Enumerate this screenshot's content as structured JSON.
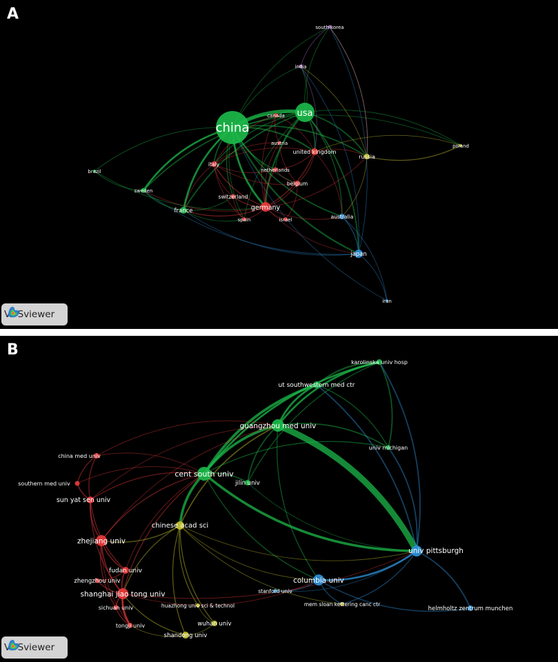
{
  "panels": [
    {
      "letter": "A",
      "brand": "VOSviewer",
      "clusters": {
        "red": "#e8393b",
        "green": "#1cb84a",
        "blue": "#2e8fd6",
        "yellow": "#c6c12d",
        "purple": "#b06ad0"
      },
      "nodes": [
        {
          "id": "china",
          "label": "china",
          "cluster": "green"
        },
        {
          "id": "usa",
          "label": "usa",
          "cluster": "green"
        },
        {
          "id": "south korea",
          "label": "south korea",
          "cluster": "purple"
        },
        {
          "id": "india",
          "label": "india",
          "cluster": "purple"
        },
        {
          "id": "canada",
          "label": "canada",
          "cluster": "red"
        },
        {
          "id": "austria",
          "label": "austria",
          "cluster": "red"
        },
        {
          "id": "united kingdom",
          "label": "united kingdom",
          "cluster": "red"
        },
        {
          "id": "russia",
          "label": "russia",
          "cluster": "yellow"
        },
        {
          "id": "poland",
          "label": "poland",
          "cluster": "yellow"
        },
        {
          "id": "italy",
          "label": "italy",
          "cluster": "red"
        },
        {
          "id": "netherlands",
          "label": "netherlands",
          "cluster": "red"
        },
        {
          "id": "belgium",
          "label": "belgium",
          "cluster": "red"
        },
        {
          "id": "brazil",
          "label": "brazil",
          "cluster": "green"
        },
        {
          "id": "sweden",
          "label": "sweden",
          "cluster": "green"
        },
        {
          "id": "switzerland",
          "label": "switzerland",
          "cluster": "red"
        },
        {
          "id": "germany",
          "label": "germany",
          "cluster": "red"
        },
        {
          "id": "france",
          "label": "france",
          "cluster": "green"
        },
        {
          "id": "spain",
          "label": "spain",
          "cluster": "red"
        },
        {
          "id": "israel",
          "label": "israel",
          "cluster": "red"
        },
        {
          "id": "australia",
          "label": "australia",
          "cluster": "blue"
        },
        {
          "id": "japan",
          "label": "japan",
          "cluster": "blue"
        },
        {
          "id": "iran",
          "label": "iran",
          "cluster": "blue"
        }
      ],
      "links": [
        [
          "china",
          "usa",
          6
        ],
        [
          "china",
          "germany",
          3
        ],
        [
          "china",
          "united kingdom",
          2.5
        ],
        [
          "china",
          "france",
          3
        ],
        [
          "china",
          "sweden",
          3
        ],
        [
          "china",
          "russia",
          2
        ],
        [
          "china",
          "japan",
          2.5
        ],
        [
          "china",
          "australia",
          2
        ],
        [
          "china",
          "italy",
          2
        ],
        [
          "china",
          "canada",
          1.5
        ],
        [
          "china",
          "brazil",
          1
        ],
        [
          "china",
          "switzerland",
          1.5
        ],
        [
          "china",
          "netherlands",
          1.5
        ],
        [
          "china",
          "south korea",
          1
        ],
        [
          "china",
          "india",
          1
        ],
        [
          "china",
          "spain",
          1
        ],
        [
          "china",
          "belgium",
          1
        ],
        [
          "china",
          "poland",
          1
        ],
        [
          "usa",
          "germany",
          2.5
        ],
        [
          "usa",
          "united kingdom",
          2
        ],
        [
          "usa",
          "france",
          2
        ],
        [
          "usa",
          "japan",
          2
        ],
        [
          "usa",
          "russia",
          2
        ],
        [
          "usa",
          "australia",
          1.5
        ],
        [
          "usa",
          "italy",
          1.5
        ],
        [
          "usa",
          "canada",
          1.5
        ],
        [
          "usa",
          "south korea",
          1
        ],
        [
          "usa",
          "india",
          1
        ],
        [
          "usa",
          "sweden",
          2
        ],
        [
          "usa",
          "poland",
          1
        ],
        [
          "usa",
          "netherlands",
          1
        ],
        [
          "usa",
          "spain",
          1
        ],
        [
          "germany",
          "united kingdom",
          1.5
        ],
        [
          "germany",
          "italy",
          1.5
        ],
        [
          "germany",
          "france",
          1.5
        ],
        [
          "germany",
          "switzerland",
          1.5
        ],
        [
          "germany",
          "netherlands",
          1.5
        ],
        [
          "germany",
          "belgium",
          1
        ],
        [
          "germany",
          "spain",
          1
        ],
        [
          "germany",
          "israel",
          1
        ],
        [
          "germany",
          "austria",
          1
        ],
        [
          "germany",
          "canada",
          1
        ],
        [
          "germany",
          "sweden",
          1
        ],
        [
          "germany",
          "russia",
          1
        ],
        [
          "germany",
          "japan",
          1
        ],
        [
          "germany",
          "australia",
          1
        ],
        [
          "italy",
          "france",
          1
        ],
        [
          "italy",
          "switzerland",
          1
        ],
        [
          "italy",
          "united kingdom",
          1
        ],
        [
          "italy",
          "netherlands",
          1
        ],
        [
          "italy",
          "spain",
          1
        ],
        [
          "italy",
          "belgium",
          1
        ],
        [
          "united kingdom",
          "netherlands",
          1
        ],
        [
          "united kingdom",
          "belgium",
          1
        ],
        [
          "united kingdom",
          "australia",
          1
        ],
        [
          "united kingdom",
          "russia",
          1
        ],
        [
          "canada",
          "austria",
          1
        ],
        [
          "canada",
          "italy",
          1
        ],
        [
          "canada",
          "united kingdom",
          1
        ],
        [
          "austria",
          "italy",
          1
        ],
        [
          "austria",
          "belgium",
          1
        ],
        [
          "russia",
          "poland",
          1.5
        ],
        [
          "russia",
          "australia",
          1
        ],
        [
          "russia",
          "india",
          1
        ],
        [
          "russia",
          "south korea",
          1
        ],
        [
          "japan",
          "australia",
          1.5
        ],
        [
          "japan",
          "iran",
          1
        ],
        [
          "japan",
          "south korea",
          1
        ],
        [
          "japan",
          "india",
          1
        ],
        [
          "japan",
          "france",
          1
        ],
        [
          "japan",
          "sweden",
          1
        ],
        [
          "australia",
          "iran",
          1
        ],
        [
          "sweden",
          "france",
          1.5
        ],
        [
          "sweden",
          "brazil",
          1
        ],
        [
          "france",
          "spain",
          1
        ],
        [
          "france",
          "switzerland",
          1
        ],
        [
          "south korea",
          "india",
          1
        ],
        [
          "south korea",
          "russia",
          1
        ],
        [
          "india",
          "united kingdom",
          1
        ],
        [
          "poland",
          "united kingdom",
          1
        ],
        [
          "brazil",
          "germany",
          1
        ],
        [
          "israel",
          "belgium",
          1
        ],
        [
          "switzerland",
          "spain",
          1
        ],
        [
          "netherlands",
          "belgium",
          1
        ],
        [
          "iran",
          "china",
          1
        ]
      ]
    },
    {
      "letter": "B",
      "brand": "VOSviewer",
      "clusters": {
        "red": "#e8393b",
        "green": "#1cb84a",
        "blue": "#2e8fd6",
        "yellow": "#c6c12d"
      },
      "nodes": [
        {
          "id": "karolinska univ hosp",
          "label": "karolinska univ hosp",
          "cluster": "green"
        },
        {
          "id": "ut southwestern med ctr",
          "label": "ut southwestern med ctr",
          "cluster": "green"
        },
        {
          "id": "guangzhou med univ",
          "label": "guangzhou med univ",
          "cluster": "green"
        },
        {
          "id": "univ michigan",
          "label": "univ michigan",
          "cluster": "green"
        },
        {
          "id": "cent south univ",
          "label": "cent south univ",
          "cluster": "green"
        },
        {
          "id": "jilin univ",
          "label": "jilin univ",
          "cluster": "green"
        },
        {
          "id": "china med univ",
          "label": "china med univ",
          "cluster": "red"
        },
        {
          "id": "southern med univ",
          "label": "southern med univ",
          "cluster": "red"
        },
        {
          "id": "sun yat sen univ",
          "label": "sun yat sen univ",
          "cluster": "red"
        },
        {
          "id": "chinese acad sci",
          "label": "chinese acad sci",
          "cluster": "yellow"
        },
        {
          "id": "zhejiang univ",
          "label": "zhejiang univ",
          "cluster": "red"
        },
        {
          "id": "univ pittsburgh",
          "label": "univ pittsburgh",
          "cluster": "blue"
        },
        {
          "id": "fudan univ",
          "label": "fudan univ",
          "cluster": "red"
        },
        {
          "id": "columbia univ",
          "label": "columbia univ",
          "cluster": "blue"
        },
        {
          "id": "zhengzhou univ",
          "label": "zhengzhou univ",
          "cluster": "red"
        },
        {
          "id": "stanford univ",
          "label": "stanford univ",
          "cluster": "blue"
        },
        {
          "id": "shanghai jiao tong univ",
          "label": "shanghai jiao tong univ",
          "cluster": "red"
        },
        {
          "id": "huazhong univ sci & technol",
          "label": "huazhong univ sci & technol",
          "cluster": "yellow"
        },
        {
          "id": "mem sloan kettering canc ctr",
          "label": "mem sloan kettering canc ctr",
          "cluster": "yellow"
        },
        {
          "id": "helmholtz zentrum munchen",
          "label": "helmholtz zentrum munchen",
          "cluster": "blue"
        },
        {
          "id": "sichuan univ",
          "label": "sichuan univ",
          "cluster": "red"
        },
        {
          "id": "wuhan univ",
          "label": "wuhan univ",
          "cluster": "yellow"
        },
        {
          "id": "tongji univ",
          "label": "tongji univ",
          "cluster": "red"
        },
        {
          "id": "shandong univ",
          "label": "shandong univ",
          "cluster": "yellow"
        }
      ],
      "links": [
        [
          "guangzhou med univ",
          "univ pittsburgh",
          10
        ],
        [
          "cent south univ",
          "univ pittsburgh",
          4
        ],
        [
          "cent south univ",
          "guangzhou med univ",
          4
        ],
        [
          "cent south univ",
          "ut southwestern med ctr",
          4
        ],
        [
          "cent south univ",
          "karolinska univ hosp",
          3
        ],
        [
          "guangzhou med univ",
          "ut southwestern med ctr",
          3
        ],
        [
          "guangzhou med univ",
          "karolinska univ hosp",
          3
        ],
        [
          "ut southwestern med ctr",
          "karolinska univ hosp",
          2.5
        ],
        [
          "univ michigan",
          "karolinska univ hosp",
          2
        ],
        [
          "univ pittsburgh",
          "karolinska univ hosp",
          2
        ],
        [
          "univ pittsburgh",
          "ut southwestern med ctr",
          2
        ],
        [
          "univ pittsburgh",
          "univ michigan",
          2
        ],
        [
          "cent south univ",
          "chinese acad sci",
          4
        ],
        [
          "chinese acad sci",
          "guangzhou med univ",
          2
        ],
        [
          "cent south univ",
          "jilin univ",
          2
        ],
        [
          "jilin univ",
          "guangzhou med univ",
          2
        ],
        [
          "jilin univ",
          "karolinska univ hosp",
          1.5
        ],
        [
          "univ pittsburgh",
          "columbia univ",
          3
        ],
        [
          "univ pittsburgh",
          "helmholtz zentrum munchen",
          2
        ],
        [
          "columbia univ",
          "helmholtz zentrum munchen",
          1.5
        ],
        [
          "columbia univ",
          "stanford univ",
          1.5
        ],
        [
          "columbia univ",
          "mem sloan kettering canc ctr",
          1.5
        ],
        [
          "univ pittsburgh",
          "mem sloan kettering canc ctr",
          1.5
        ],
        [
          "cent south univ",
          "columbia univ",
          1.5
        ],
        [
          "guangzhou med univ",
          "columbia univ",
          1.5
        ],
        [
          "guangzhou med univ",
          "univ michigan",
          2
        ],
        [
          "cent south univ",
          "univ michigan",
          1.5
        ],
        [
          "ut southwestern med ctr",
          "univ michigan",
          1.5
        ],
        [
          "zhejiang univ",
          "sun yat sen univ",
          2
        ],
        [
          "zhejiang univ",
          "fudan univ",
          2
        ],
        [
          "fudan univ",
          "shanghai jiao tong univ",
          2.5
        ],
        [
          "shanghai jiao tong univ",
          "tongji univ",
          3
        ],
        [
          "shanghai jiao tong univ",
          "sichuan univ",
          2
        ],
        [
          "zhejiang univ",
          "shanghai jiao tong univ",
          2
        ],
        [
          "sun yat sen univ",
          "southern med univ",
          2
        ],
        [
          "sun yat sen univ",
          "china med univ",
          1.5
        ],
        [
          "china med univ",
          "southern med univ",
          1.5
        ],
        [
          "zhengzhou univ",
          "fudan univ",
          1.5
        ],
        [
          "zhengzhou univ",
          "shanghai jiao tong univ",
          1.5
        ],
        [
          "sun yat sen univ",
          "cent south univ",
          1.5
        ],
        [
          "zhejiang univ",
          "cent south univ",
          1.5
        ],
        [
          "shanghai jiao tong univ",
          "cent south univ",
          1.5
        ],
        [
          "chinese acad sci",
          "zhejiang univ",
          1.5
        ],
        [
          "chinese acad sci",
          "shanghai jiao tong univ",
          1.5
        ],
        [
          "chinese acad sci",
          "huazhong univ sci & technol",
          1.5
        ],
        [
          "chinese acad sci",
          "wuhan univ",
          1.5
        ],
        [
          "chinese acad sci",
          "shandong univ",
          1.5
        ],
        [
          "shandong univ",
          "wuhan univ",
          1
        ],
        [
          "shandong univ",
          "tongji univ",
          1
        ],
        [
          "shandong univ",
          "shanghai jiao tong univ",
          1.5
        ],
        [
          "huazhong univ sci & technol",
          "wuhan univ",
          1
        ],
        [
          "sichuan univ",
          "tongji univ",
          1.5
        ],
        [
          "china med univ",
          "cent south univ",
          1
        ],
        [
          "southern med univ",
          "cent south univ",
          1
        ],
        [
          "zhejiang univ",
          "guangzhou med univ",
          1
        ],
        [
          "fudan univ",
          "cent south univ",
          1
        ],
        [
          "shanghai jiao tong univ",
          "columbia univ",
          1
        ],
        [
          "shanghai jiao tong univ",
          "univ pittsburgh",
          1
        ],
        [
          "mem sloan kettering canc ctr",
          "chinese acad sci",
          1
        ],
        [
          "stanford univ",
          "univ pittsburgh",
          1
        ],
        [
          "zhejiang univ",
          "sichuan univ",
          1.5
        ],
        [
          "sun yat sen univ",
          "fudan univ",
          1.5
        ],
        [
          "sun yat sen univ",
          "shanghai jiao tong univ",
          1.5
        ],
        [
          "tongji univ",
          "zhejiang univ",
          1
        ],
        [
          "sun yat sen univ",
          "guangzhou med univ",
          1
        ],
        [
          "china med univ",
          "guangzhou med univ",
          1
        ],
        [
          "chinese acad sci",
          "univ pittsburgh",
          1
        ],
        [
          "chinese acad sci",
          "columbia univ",
          1
        ],
        [
          "jilin univ",
          "univ pittsburgh",
          1
        ]
      ]
    }
  ]
}
